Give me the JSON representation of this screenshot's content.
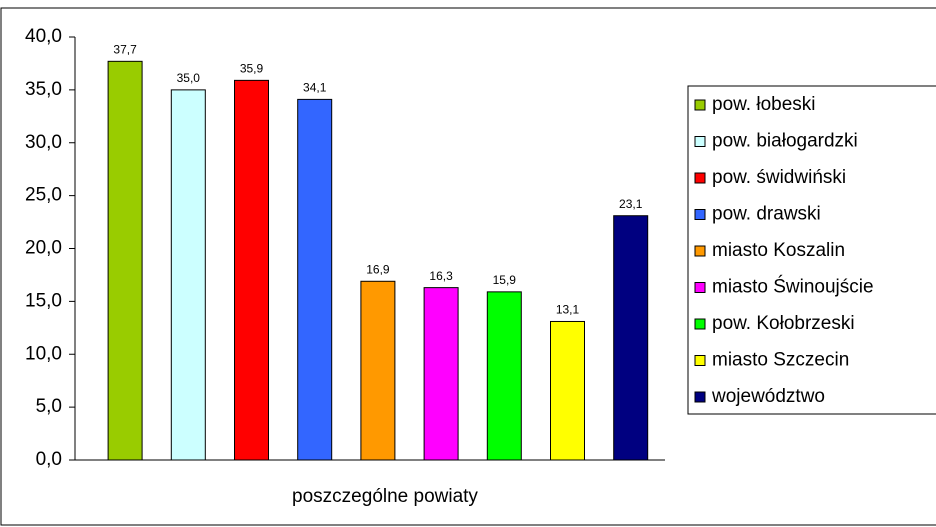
{
  "chart_data": {
    "type": "bar",
    "x_label": "poszczególne powiaty",
    "categories": [
      "pow. łobeski",
      "pow. białogardzki",
      "pow. świdwiński",
      "pow. drawski",
      "miasto Koszalin",
      "miasto Świnoujście",
      "pow. Kołobrzeski",
      "miasto Szczecin",
      "województwo"
    ],
    "values": [
      37.7,
      35.0,
      35.9,
      34.1,
      16.9,
      16.3,
      15.9,
      13.1,
      23.1
    ],
    "value_labels": [
      "37,7",
      "35,0",
      "35,9",
      "34,1",
      "16,9",
      "16,3",
      "15,9",
      "13,1",
      "23,1"
    ],
    "colors": [
      "#99cc00",
      "#ccffff",
      "#ff0000",
      "#3366ff",
      "#ff9900",
      "#ff00ff",
      "#00ff00",
      "#ffff00",
      "#000080"
    ],
    "ylim": [
      0,
      40
    ],
    "yticks": [
      {
        "value": 0,
        "label": "0,0"
      },
      {
        "value": 5,
        "label": "5,0"
      },
      {
        "value": 10,
        "label": "10,0"
      },
      {
        "value": 15,
        "label": "15,0"
      },
      {
        "value": 20,
        "label": "20,0"
      },
      {
        "value": 25,
        "label": "25,0"
      },
      {
        "value": 30,
        "label": "30,0"
      },
      {
        "value": 35,
        "label": "35,0"
      },
      {
        "value": 40,
        "label": "40,0"
      }
    ],
    "grid": false,
    "legend": "right"
  }
}
